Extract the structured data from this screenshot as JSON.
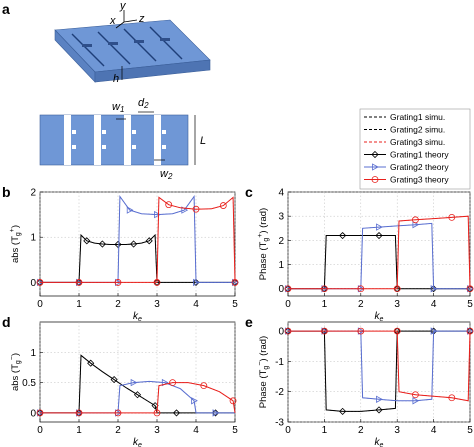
{
  "panel_letters": {
    "a": "a",
    "b": "b",
    "c": "c",
    "d": "d",
    "e": "e"
  },
  "schematic": {
    "axis_x": "x",
    "axis_y": "y",
    "axis_z": "z",
    "label_h": "h",
    "label_w1": "w",
    "label_w1_sub": "1",
    "label_d2": "d",
    "label_d2_sub": "2",
    "label_w2": "w",
    "label_w2_sub": "2",
    "label_L": "L"
  },
  "legend": [
    {
      "label": "Grating1 simu.",
      "color": "#000000",
      "style": "dashed",
      "marker": "none"
    },
    {
      "label": "Grating2 simu.",
      "color": "#000000",
      "style": "dashed",
      "marker": "none"
    },
    {
      "label": "Grating3 simu.",
      "color": "#e8201c",
      "style": "dashed",
      "marker": "none"
    },
    {
      "label": "Grating1 theory",
      "color": "#000000",
      "style": "solid",
      "marker": "diamond"
    },
    {
      "label": "Grating2 theory",
      "color": "#5a6fd0",
      "style": "solid",
      "marker": "triangle"
    },
    {
      "label": "Grating3 theory",
      "color": "#e8201c",
      "style": "solid",
      "marker": "circle"
    }
  ],
  "chart_data": [
    {
      "id": "b",
      "type": "line",
      "xlabel": "k",
      "xlabel_sub": "e",
      "ylabel": "abs (T",
      "ylabel_sub": "g",
      "ylabel_sup": "+",
      "ylabel_end": ")",
      "xlim": [
        0,
        5
      ],
      "ylim": [
        -0.3,
        2
      ],
      "xticks": [
        "0",
        "1",
        "2",
        "3",
        "4",
        "5"
      ],
      "xtick_vals": [
        0,
        1,
        2,
        3,
        4,
        5
      ],
      "yticks": [
        "0",
        "1",
        "2"
      ],
      "ytick_vals": [
        0,
        1,
        2
      ],
      "grid": true,
      "series": [
        {
          "color": "#000000",
          "marker": "diamond",
          "x": [
            0,
            0.5,
            1.0,
            1.05,
            1.2,
            1.4,
            1.6,
            1.8,
            2.0,
            2.2,
            2.4,
            2.6,
            2.8,
            2.95,
            3.0,
            3.5,
            4.0,
            4.5,
            5.0
          ],
          "y": [
            0,
            0,
            0,
            1.05,
            0.92,
            0.87,
            0.85,
            0.84,
            0.84,
            0.84,
            0.85,
            0.87,
            0.92,
            1.05,
            0,
            0,
            0,
            0,
            0
          ]
        },
        {
          "color": "#5a6fd0",
          "marker": "triangle",
          "x": [
            0,
            0.5,
            1.0,
            1.5,
            2.0,
            2.05,
            2.3,
            2.6,
            3.0,
            3.4,
            3.7,
            3.95,
            4.0,
            4.5,
            5.0
          ],
          "y": [
            0,
            0,
            0,
            0,
            0,
            1.9,
            1.6,
            1.52,
            1.5,
            1.52,
            1.6,
            1.9,
            0,
            0,
            0
          ]
        },
        {
          "color": "#e8201c",
          "marker": "circle",
          "x": [
            0,
            0.5,
            1.0,
            1.5,
            2.0,
            2.5,
            3.0,
            3.05,
            3.3,
            3.6,
            4.0,
            4.4,
            4.7,
            4.95,
            5.0
          ],
          "y": [
            0,
            0,
            0,
            0,
            0,
            0,
            0,
            1.88,
            1.72,
            1.65,
            1.62,
            1.63,
            1.7,
            1.88,
            0
          ]
        }
      ]
    },
    {
      "id": "c",
      "type": "line",
      "xlabel": "k",
      "xlabel_sub": "e",
      "ylabel": "Phase (T",
      "ylabel_sub": "g",
      "ylabel_sup": "+",
      "ylabel_end": ") (rad)",
      "xlim": [
        0,
        5
      ],
      "ylim": [
        -0.3,
        4
      ],
      "xticks": [
        "0",
        "1",
        "2",
        "3",
        "4",
        "5"
      ],
      "xtick_vals": [
        0,
        1,
        2,
        3,
        4,
        5
      ],
      "yticks": [
        "0",
        "1",
        "2",
        "3",
        "4"
      ],
      "ytick_vals": [
        0,
        1,
        2,
        3,
        4
      ],
      "grid": true,
      "series": [
        {
          "color": "#000000",
          "marker": "diamond",
          "x": [
            0,
            0.5,
            1.0,
            1.05,
            1.5,
            2.0,
            2.5,
            2.95,
            3.0,
            3.5,
            4.0,
            4.5,
            5.0
          ],
          "y": [
            0,
            0,
            0,
            2.2,
            2.2,
            2.2,
            2.2,
            2.2,
            0,
            0,
            0,
            0,
            0
          ]
        },
        {
          "color": "#5a6fd0",
          "marker": "triangle",
          "x": [
            0,
            0.5,
            1.0,
            1.5,
            2.0,
            2.05,
            2.5,
            3.0,
            3.5,
            3.95,
            4.0,
            4.5,
            5.0
          ],
          "y": [
            0,
            0,
            0,
            0,
            0,
            2.5,
            2.55,
            2.6,
            2.65,
            2.7,
            0,
            0,
            0
          ]
        },
        {
          "color": "#e8201c",
          "marker": "circle",
          "x": [
            0,
            0.5,
            1.0,
            1.5,
            2.0,
            2.5,
            3.0,
            3.05,
            3.5,
            4.0,
            4.5,
            4.95,
            5.0
          ],
          "y": [
            0,
            0,
            0,
            0,
            0,
            0,
            0,
            2.8,
            2.85,
            2.9,
            2.95,
            3.0,
            0
          ]
        }
      ]
    },
    {
      "id": "d",
      "type": "line",
      "xlabel": "k",
      "xlabel_sub": "e",
      "ylabel": "abs (T",
      "ylabel_sub": "g",
      "ylabel_sup": "−",
      "ylabel_end": ")",
      "xlim": [
        0,
        5
      ],
      "ylim": [
        -0.15,
        1.5
      ],
      "xticks": [
        "0",
        "1",
        "2",
        "3",
        "4",
        "5"
      ],
      "xtick_vals": [
        0,
        1,
        2,
        3,
        4,
        5
      ],
      "yticks": [
        "0",
        "0.5",
        "1"
      ],
      "ytick_vals": [
        0,
        0.5,
        1
      ],
      "grid": true,
      "series": [
        {
          "color": "#000000",
          "marker": "diamond",
          "x": [
            0,
            0.5,
            1.0,
            1.05,
            1.3,
            1.6,
            1.9,
            2.2,
            2.5,
            2.8,
            2.95,
            3.0,
            3.5,
            4.0,
            4.5,
            5.0
          ],
          "y": [
            0,
            0,
            0,
            0.95,
            0.82,
            0.68,
            0.55,
            0.42,
            0.3,
            0.18,
            0.12,
            0,
            0,
            0,
            0,
            0
          ]
        },
        {
          "color": "#5a6fd0",
          "marker": "triangle",
          "x": [
            0,
            0.5,
            1.0,
            1.5,
            2.0,
            2.05,
            2.4,
            2.8,
            3.2,
            3.6,
            3.95,
            4.0,
            4.5,
            5.0
          ],
          "y": [
            0,
            0,
            0,
            0,
            0,
            0.45,
            0.5,
            0.52,
            0.5,
            0.4,
            0.2,
            0,
            0,
            0
          ]
        },
        {
          "color": "#e8201c",
          "marker": "circle",
          "x": [
            0,
            0.5,
            1.0,
            1.5,
            2.0,
            2.5,
            3.0,
            3.05,
            3.4,
            3.8,
            4.2,
            4.6,
            4.95,
            5.0
          ],
          "y": [
            0,
            0,
            0,
            0,
            0,
            0,
            0,
            0.45,
            0.5,
            0.5,
            0.45,
            0.35,
            0.2,
            0
          ]
        }
      ]
    },
    {
      "id": "e",
      "type": "line",
      "xlabel": "k",
      "xlabel_sub": "e",
      "ylabel": "Phase (T",
      "ylabel_sub": "g",
      "ylabel_sup": "−",
      "ylabel_end": ") (rad)",
      "xlim": [
        0,
        5
      ],
      "ylim": [
        -3,
        0.3
      ],
      "xticks": [
        "0",
        "1",
        "2",
        "3",
        "4",
        "5"
      ],
      "xtick_vals": [
        0,
        1,
        2,
        3,
        4,
        5
      ],
      "yticks": [
        "0",
        "-1",
        "-2",
        "-3"
      ],
      "ytick_vals": [
        0,
        -1,
        -2,
        -3
      ],
      "grid": true,
      "series": [
        {
          "color": "#000000",
          "marker": "diamond",
          "x": [
            0,
            0.5,
            1.0,
            1.05,
            1.5,
            2.0,
            2.5,
            2.95,
            3.0,
            3.5,
            4.0,
            4.5,
            5.0
          ],
          "y": [
            0,
            0,
            0,
            -2.6,
            -2.65,
            -2.65,
            -2.6,
            -2.55,
            0,
            0,
            0,
            0,
            0
          ]
        },
        {
          "color": "#5a6fd0",
          "marker": "triangle",
          "x": [
            0,
            0.5,
            1.0,
            1.5,
            2.0,
            2.05,
            2.5,
            3.0,
            3.5,
            3.95,
            4.0,
            4.5,
            5.0
          ],
          "y": [
            0,
            0,
            0,
            0,
            0,
            -2.2,
            -2.25,
            -2.3,
            -2.3,
            -2.25,
            0,
            0,
            0
          ]
        },
        {
          "color": "#e8201c",
          "marker": "circle",
          "x": [
            0,
            0.5,
            1.0,
            1.5,
            2.0,
            2.5,
            3.0,
            3.05,
            3.5,
            4.0,
            4.5,
            4.95,
            5.0
          ],
          "y": [
            0,
            0,
            0,
            0,
            0,
            0,
            0,
            -2.0,
            -2.1,
            -2.15,
            -2.2,
            -2.3,
            0
          ]
        }
      ]
    }
  ]
}
